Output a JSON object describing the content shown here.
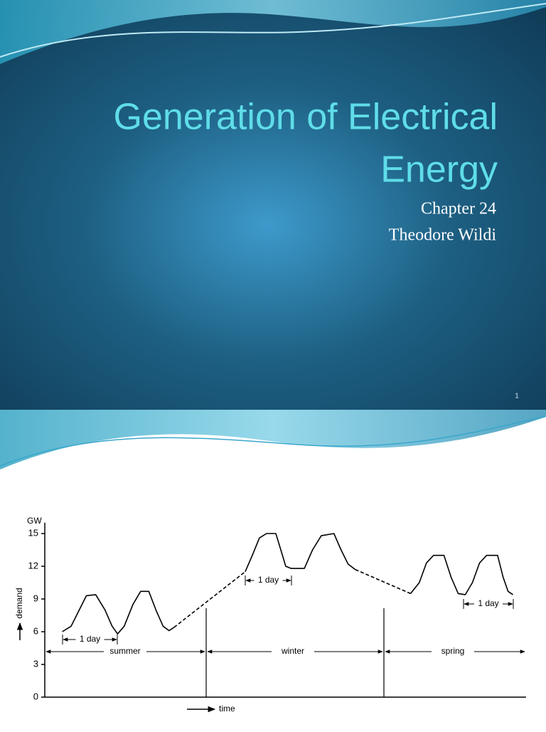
{
  "slide_1": {
    "title_lines": [
      "Generation of Electrical",
      "Energy"
    ],
    "subtitle_lines": [
      "Chapter 24",
      "Theodore Wildi"
    ],
    "page_number": "1"
  },
  "chart_data": {
    "type": "line",
    "y_unit": "GW",
    "y_label": "demand",
    "x_label": "time",
    "ylim": [
      0,
      16
    ],
    "yticks": [
      0,
      3,
      6,
      9,
      12,
      15
    ],
    "xlim": [
      -0.32,
      8.47
    ],
    "series": [
      {
        "dashed": false,
        "x": [
          0,
          0.16,
          0.31,
          0.44,
          0.61,
          0.78,
          0.91,
          1.01,
          1.13,
          1.29,
          1.43,
          1.58,
          1.71,
          1.84,
          1.95,
          2.04,
          2.69,
          3.34,
          3.47,
          3.6,
          3.73,
          3.9,
          3.99,
          4.08,
          4.18,
          4.42,
          4.57,
          4.73,
          4.96,
          5.09,
          5.22,
          5.35,
          5.85,
          6.36,
          6.52,
          6.65,
          6.78,
          6.97,
          7.1,
          7.23,
          7.36,
          7.49,
          7.62,
          7.75,
          7.95,
          8.05,
          8.14,
          8.23
        ],
        "values": [
          6.0,
          6.5,
          8.0,
          9.3,
          9.4,
          8.0,
          6.5,
          5.8,
          6.5,
          8.5,
          9.7,
          9.7,
          8.0,
          6.5,
          6.1,
          6.4,
          null,
          11.5,
          13.0,
          14.6,
          15.0,
          15.0,
          13.5,
          12.0,
          11.8,
          11.8,
          13.5,
          14.8,
          15.0,
          13.5,
          12.2,
          11.7,
          null,
          9.5,
          10.5,
          12.3,
          13.0,
          13.0,
          11.0,
          9.5,
          9.4,
          10.5,
          12.3,
          13.0,
          13.0,
          11.0,
          9.7,
          9.4
        ]
      },
      {
        "dashed": true,
        "x": [
          2.04,
          3.34,
          4.5,
          5.35,
          6.36
        ],
        "values": [
          6.4,
          11.5,
          null,
          11.7,
          9.5
        ]
      }
    ],
    "annotations": [
      "1 day",
      "1 day",
      "1 day"
    ],
    "seasons": [
      "summer",
      "winter",
      "spring"
    ]
  }
}
